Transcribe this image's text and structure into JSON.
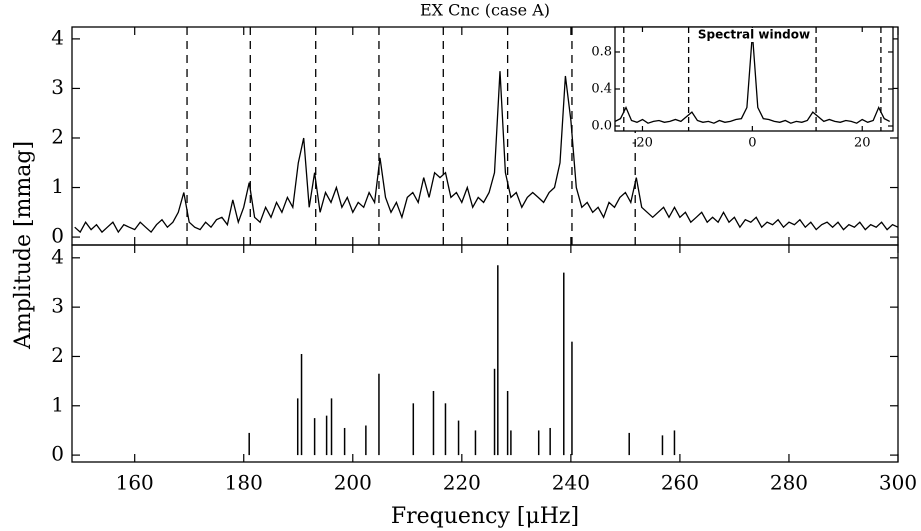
{
  "chart_data": [
    {
      "type": "line",
      "title": "EX Cnc (case A)",
      "y_label": "Amplitude [mmag]",
      "color": "#000000",
      "xlim": [
        148.5,
        300
      ],
      "xticks": [
        160,
        180,
        200,
        220,
        240,
        260,
        280,
        300
      ],
      "ylim": [
        -0.16,
        4.24
      ],
      "yticks": [
        0,
        1,
        2,
        3,
        4
      ],
      "vlines": [
        169.6,
        181.2,
        193.2,
        204.8,
        216.6,
        228.4,
        240.2,
        251.8
      ],
      "x": [
        149,
        150,
        151,
        152,
        153,
        154,
        155,
        156,
        157,
        158,
        159,
        160,
        161,
        162,
        163,
        164,
        165,
        166,
        167,
        168,
        169,
        170,
        171,
        172,
        173,
        174,
        175,
        176,
        177,
        178,
        179,
        180,
        181,
        182,
        183,
        184,
        185,
        186,
        187,
        188,
        189,
        190,
        191,
        192,
        193,
        194,
        195,
        196,
        197,
        198,
        199,
        200,
        201,
        202,
        203,
        204,
        205,
        206,
        207,
        208,
        209,
        210,
        211,
        212,
        213,
        214,
        215,
        216,
        217,
        218,
        219,
        220,
        221,
        222,
        223,
        224,
        225,
        226,
        227,
        228,
        229,
        230,
        231,
        232,
        233,
        234,
        235,
        236,
        237,
        238,
        239,
        240,
        241,
        242,
        243,
        244,
        245,
        246,
        247,
        248,
        249,
        250,
        251,
        252,
        253,
        254,
        255,
        256,
        257,
        258,
        259,
        260,
        261,
        262,
        263,
        264,
        265,
        266,
        267,
        268,
        269,
        270,
        271,
        272,
        273,
        274,
        275,
        276,
        277,
        278,
        279,
        280,
        281,
        282,
        283,
        284,
        285,
        286,
        287,
        288,
        289,
        290,
        291,
        292,
        293,
        294,
        295,
        296,
        297,
        298,
        299,
        300
      ],
      "values": [
        0.2,
        0.1,
        0.3,
        0.15,
        0.25,
        0.1,
        0.2,
        0.3,
        0.1,
        0.25,
        0.2,
        0.15,
        0.3,
        0.2,
        0.1,
        0.25,
        0.35,
        0.2,
        0.3,
        0.5,
        0.9,
        0.3,
        0.2,
        0.15,
        0.3,
        0.2,
        0.35,
        0.4,
        0.25,
        0.75,
        0.3,
        0.6,
        1.1,
        0.4,
        0.3,
        0.6,
        0.4,
        0.7,
        0.5,
        0.8,
        0.6,
        1.5,
        2.0,
        0.6,
        1.3,
        0.5,
        0.9,
        0.7,
        1.0,
        0.6,
        0.8,
        0.5,
        0.7,
        0.6,
        0.9,
        0.7,
        1.6,
        0.8,
        0.5,
        0.7,
        0.4,
        0.8,
        0.9,
        0.7,
        1.2,
        0.8,
        1.3,
        1.2,
        1.3,
        0.8,
        0.9,
        0.7,
        1.0,
        0.6,
        0.8,
        0.7,
        0.9,
        1.3,
        3.35,
        1.3,
        0.8,
        0.9,
        0.6,
        0.8,
        0.9,
        0.8,
        0.7,
        0.9,
        1.0,
        1.5,
        3.25,
        2.35,
        1.0,
        0.6,
        0.7,
        0.5,
        0.6,
        0.4,
        0.7,
        0.6,
        0.8,
        0.9,
        0.7,
        1.2,
        0.6,
        0.5,
        0.4,
        0.5,
        0.6,
        0.4,
        0.6,
        0.4,
        0.5,
        0.3,
        0.4,
        0.5,
        0.3,
        0.4,
        0.3,
        0.5,
        0.3,
        0.4,
        0.2,
        0.35,
        0.3,
        0.4,
        0.2,
        0.3,
        0.25,
        0.35,
        0.2,
        0.3,
        0.25,
        0.35,
        0.2,
        0.3,
        0.15,
        0.25,
        0.3,
        0.2,
        0.3,
        0.15,
        0.25,
        0.2,
        0.3,
        0.15,
        0.25,
        0.2,
        0.3,
        0.15,
        0.25,
        0.2
      ]
    },
    {
      "type": "line",
      "title": "Spectral window",
      "color": "#000000",
      "xlim": [
        -25,
        25.6
      ],
      "xticks": [
        -20,
        0,
        20
      ],
      "ylim": [
        -0.054,
        1.07
      ],
      "yticks": [
        {
          "value": 0,
          "label": "0.0"
        },
        0.4,
        0.8
      ],
      "vlines": [
        -23.4,
        -11.6,
        11.6,
        23.4
      ],
      "x": [
        -25,
        -24,
        -23,
        -22,
        -21,
        -20,
        -19,
        -18,
        -17,
        -16,
        -15,
        -14,
        -13,
        -12,
        -11,
        -10,
        -9,
        -8,
        -7,
        -6,
        -5,
        -4,
        -3,
        -2,
        -1,
        0,
        1,
        2,
        3,
        4,
        5,
        6,
        7,
        8,
        9,
        10,
        11,
        12,
        13,
        14,
        15,
        16,
        17,
        18,
        19,
        20,
        21,
        22,
        23,
        24,
        25
      ],
      "values": [
        0.05,
        0.08,
        0.2,
        0.06,
        0.04,
        0.07,
        0.03,
        0.05,
        0.06,
        0.04,
        0.05,
        0.07,
        0.05,
        0.1,
        0.15,
        0.06,
        0.04,
        0.05,
        0.03,
        0.06,
        0.04,
        0.05,
        0.07,
        0.08,
        0.2,
        1.0,
        0.2,
        0.08,
        0.07,
        0.05,
        0.04,
        0.06,
        0.03,
        0.05,
        0.04,
        0.06,
        0.15,
        0.1,
        0.05,
        0.07,
        0.05,
        0.04,
        0.06,
        0.05,
        0.03,
        0.07,
        0.04,
        0.06,
        0.2,
        0.08,
        0.05
      ]
    },
    {
      "type": "stem",
      "x_label": "Frequency [μHz]",
      "color": "#000000",
      "xlim": [
        148.5,
        300
      ],
      "xticks": [
        160,
        180,
        200,
        220,
        240,
        260,
        280,
        300
      ],
      "ylim": [
        -0.14,
        4.26
      ],
      "yticks": [
        0,
        1,
        2,
        3,
        4
      ],
      "x": [
        181.0,
        189.9,
        190.6,
        193.0,
        195.2,
        196.1,
        198.5,
        202.4,
        204.8,
        211.1,
        214.8,
        217.0,
        219.4,
        222.5,
        226.0,
        226.6,
        228.4,
        229.0,
        234.1,
        236.2,
        238.7,
        240.2,
        250.7,
        256.8,
        259.0
      ],
      "values": [
        0.45,
        1.15,
        2.05,
        0.75,
        0.8,
        1.15,
        0.55,
        0.6,
        1.65,
        1.05,
        1.3,
        1.05,
        0.7,
        0.5,
        1.75,
        3.85,
        1.3,
        0.5,
        0.5,
        0.55,
        3.7,
        2.3,
        0.45,
        0.4,
        0.5
      ]
    }
  ]
}
